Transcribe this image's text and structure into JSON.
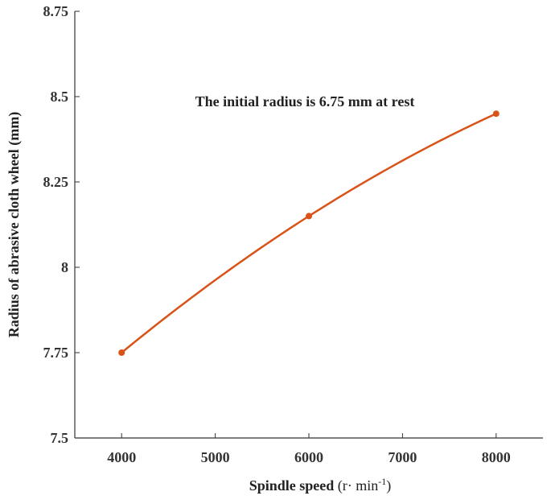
{
  "chart_data": {
    "type": "line",
    "xlabel": "Spindle speed",
    "xlabel_unit": "(r· min",
    "xlabel_unit_sup": "-1",
    "xlabel_unit_close": ")",
    "ylabel": "Radius of abrasive cloth wheel (mm)",
    "annotation": "The initial radius is 6.75 mm at rest",
    "xlim": [
      3500,
      8500
    ],
    "ylim": [
      7.5,
      8.75
    ],
    "x_ticks": [
      4000,
      5000,
      6000,
      7000,
      8000
    ],
    "x_tick_labels": [
      "4000",
      "5000",
      "6000",
      "7000",
      "8000"
    ],
    "y_ticks": [
      7.5,
      7.75,
      8,
      8.25,
      8.5,
      8.75
    ],
    "y_tick_labels": [
      "7.5",
      "7.75",
      "8",
      "8.25",
      "8.5",
      "8.75"
    ],
    "grid": false,
    "line_color": "#d95319",
    "series": [
      {
        "x": [
          4000,
          6000,
          8000
        ],
        "y": [
          7.75,
          8.15,
          8.45
        ]
      }
    ]
  }
}
